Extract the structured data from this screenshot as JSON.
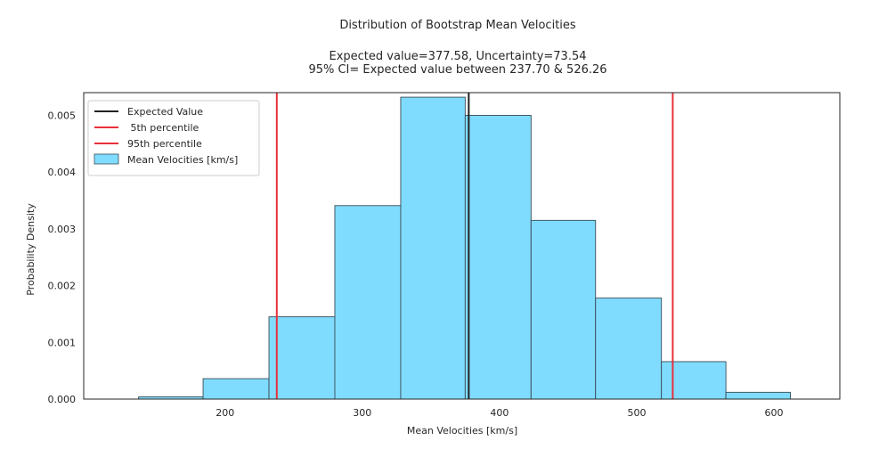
{
  "chart_data": {
    "type": "bar",
    "title": "Distribution of Bootstrap Mean Velocities",
    "subtitle_line1": "Expected value=377.58, Uncertainty=73.54",
    "subtitle_line2": "95% CI= Expected value between 237.70 & 526.26",
    "xlabel": "Mean Velocities [km/s]",
    "ylabel": "Probability Density",
    "xlim": [
      97,
      648
    ],
    "ylim": [
      0,
      0.0054
    ],
    "x_ticks": [
      {
        "value": 200,
        "label": "200"
      },
      {
        "value": 300,
        "label": "300"
      },
      {
        "value": 400,
        "label": "400"
      },
      {
        "value": 500,
        "label": "500"
      },
      {
        "value": 600,
        "label": "600"
      }
    ],
    "y_ticks": [
      {
        "value": 0.0,
        "label": "0.000"
      },
      {
        "value": 0.001,
        "label": "0.001"
      },
      {
        "value": 0.002,
        "label": "0.002"
      },
      {
        "value": 0.003,
        "label": "0.003"
      },
      {
        "value": 0.004,
        "label": "0.004"
      },
      {
        "value": 0.005,
        "label": "0.005"
      }
    ],
    "histogram": {
      "name": "Mean Velocities [km/s]",
      "color": "#80dcff",
      "edge_color": "#3a4a55",
      "bins": [
        {
          "x0": 137,
          "x1": 184,
          "density": 4e-05
        },
        {
          "x0": 184,
          "x1": 232,
          "density": 0.00036
        },
        {
          "x0": 232,
          "x1": 280,
          "density": 0.00145
        },
        {
          "x0": 280,
          "x1": 328,
          "density": 0.00341
        },
        {
          "x0": 328,
          "x1": 375,
          "density": 0.00532
        },
        {
          "x0": 375,
          "x1": 423,
          "density": 0.005
        },
        {
          "x0": 423,
          "x1": 470,
          "density": 0.00315
        },
        {
          "x0": 470,
          "x1": 518,
          "density": 0.00178
        },
        {
          "x0": 518,
          "x1": 565,
          "density": 0.00066
        },
        {
          "x0": 565,
          "x1": 612,
          "density": 0.00012
        }
      ]
    },
    "vlines": [
      {
        "name": "Expected Value",
        "x": 377.58,
        "color": "#222222"
      },
      {
        "name": " 5th percentile",
        "x": 237.7,
        "color": "#e8303a"
      },
      {
        "name": "95th percentile",
        "x": 526.26,
        "color": "#e8303a"
      }
    ],
    "grid": false,
    "legend_position": "top-left"
  }
}
